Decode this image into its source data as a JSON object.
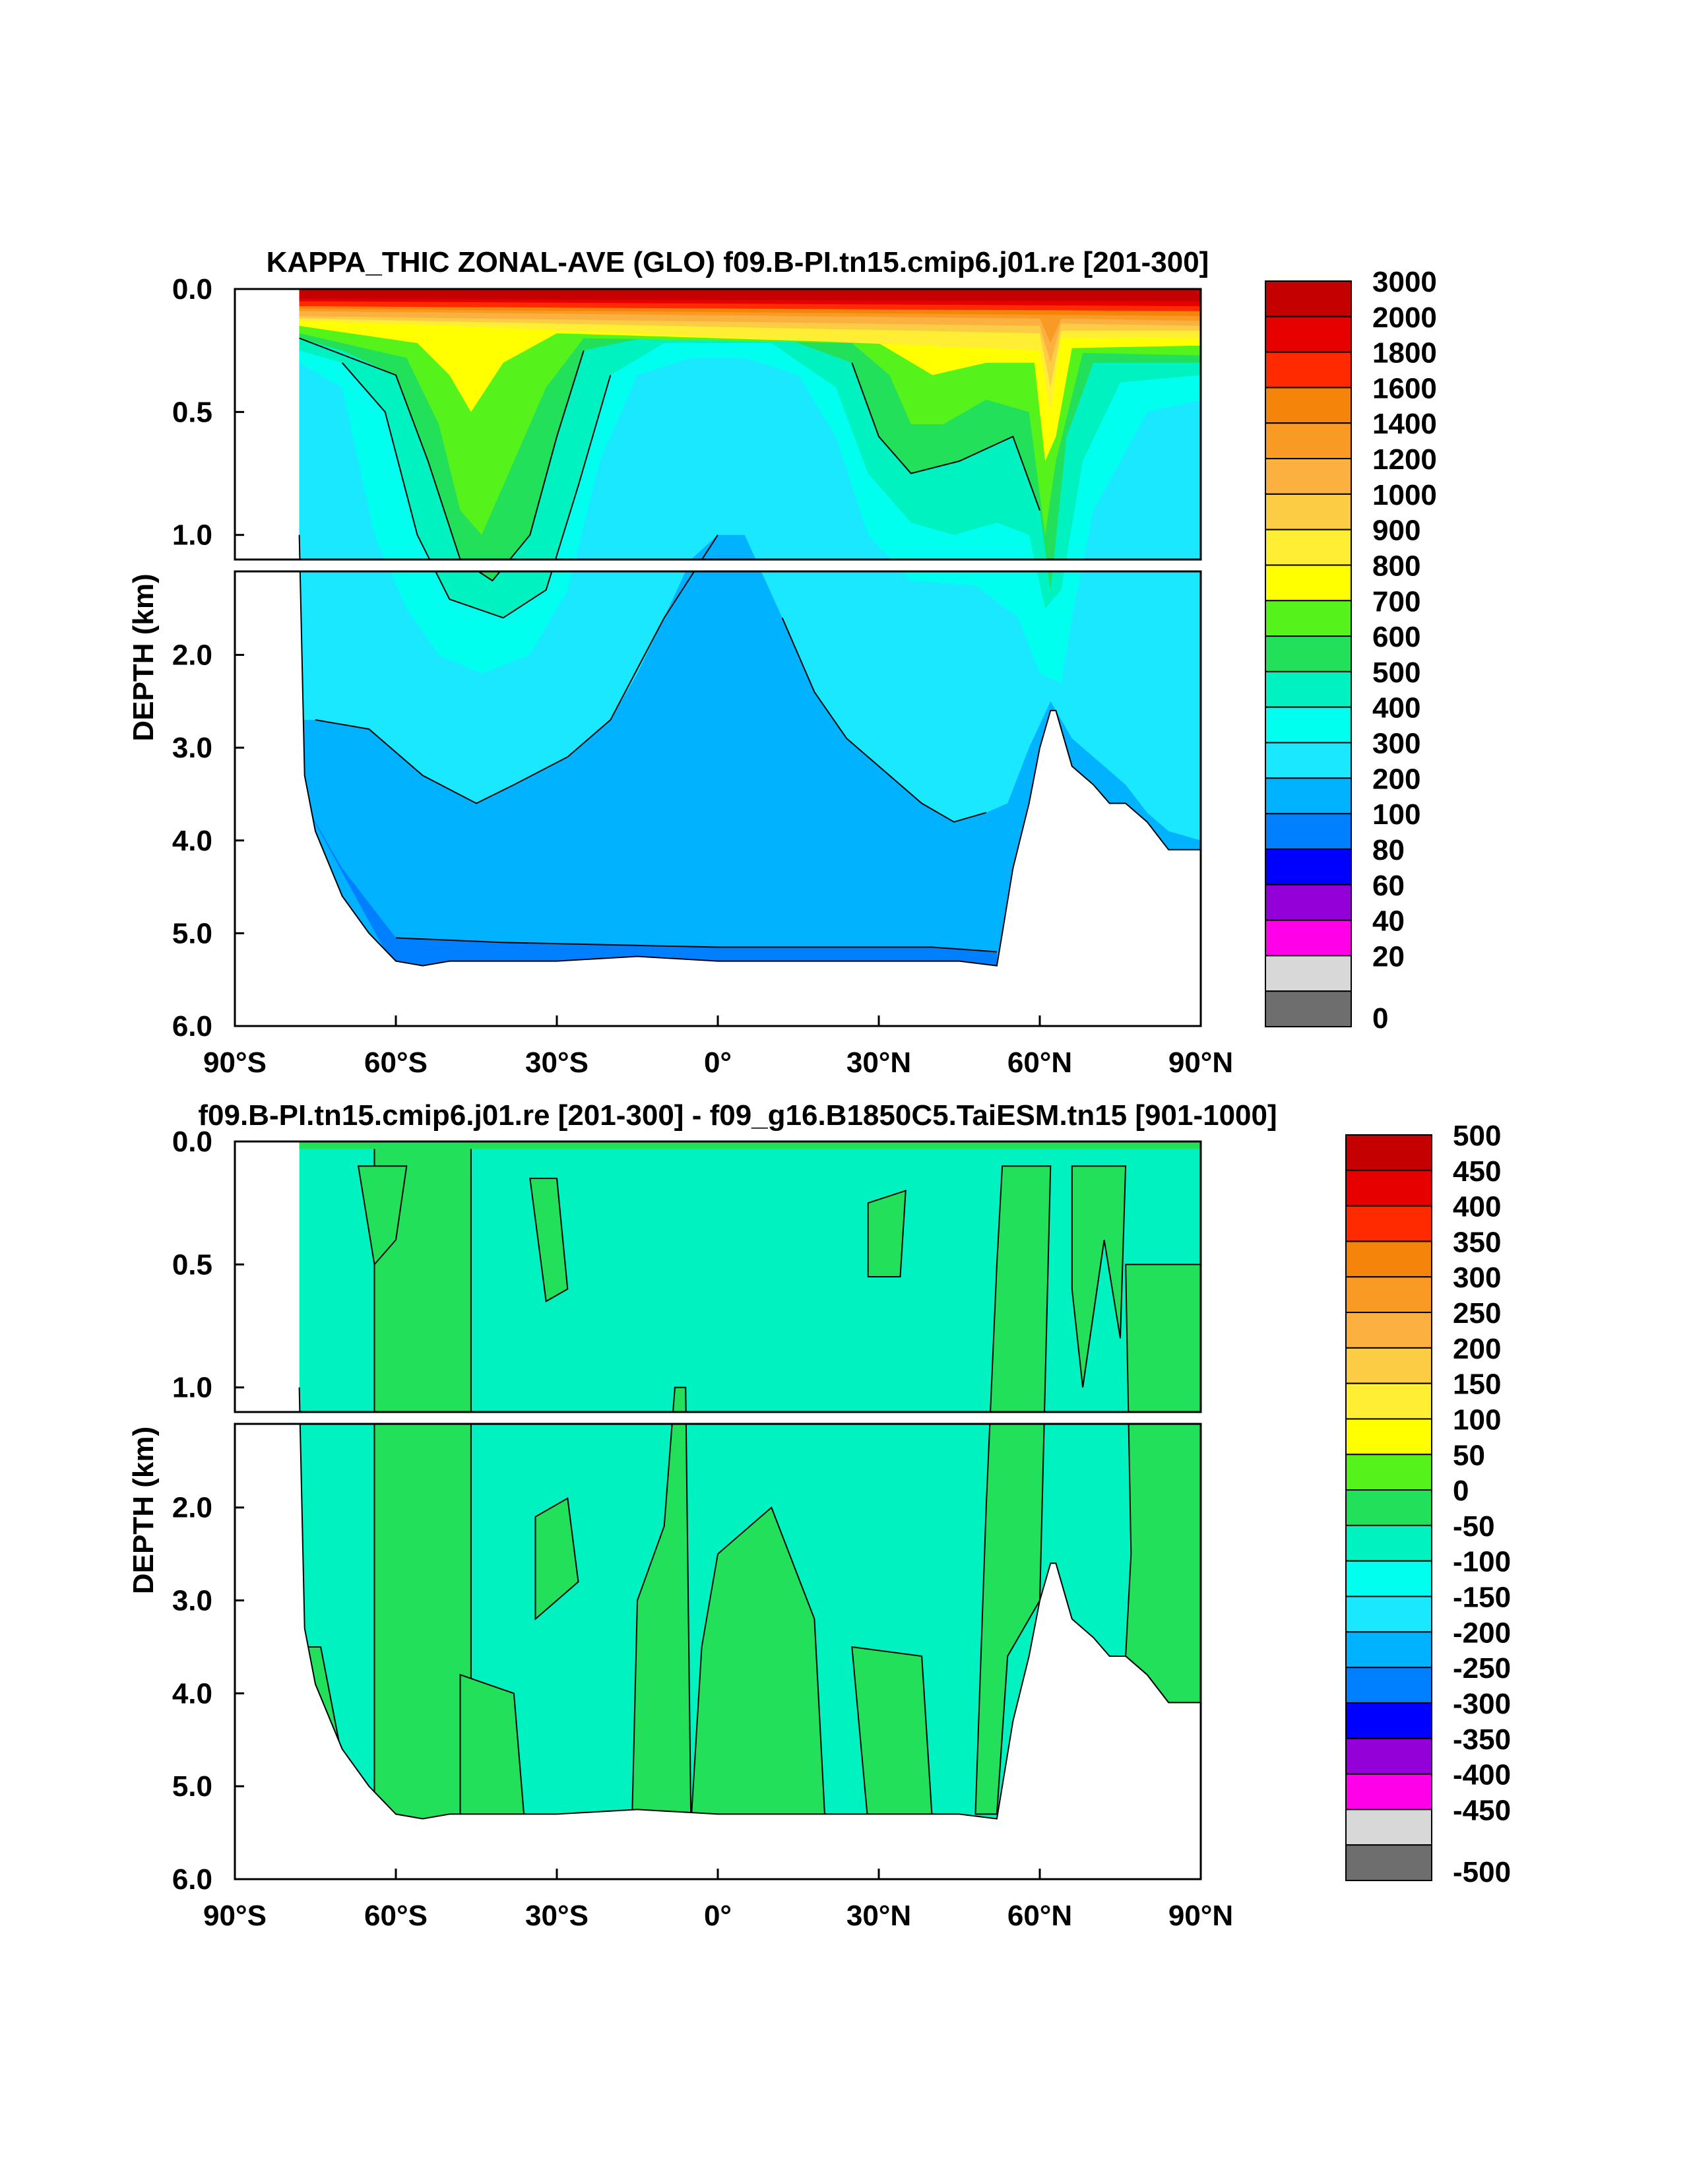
{
  "chart_data": [
    {
      "type": "heatmap",
      "title": "KAPPA_THIC ZONAL-AVE (GLO) f09.B-PI.tn15.cmip6.j01.re [201-300]",
      "ylabel": "DEPTH (km)",
      "xlabel": "",
      "xlim": [
        -90,
        90
      ],
      "ylim": [
        0,
        6
      ],
      "upper_panel_depth_range": [
        0,
        1.1
      ],
      "lower_panel_depth_range": [
        1.1,
        6
      ],
      "x_ticks": [
        {
          "value": -90,
          "label": "90°S"
        },
        {
          "value": -60,
          "label": "60°S"
        },
        {
          "value": -30,
          "label": "30°S"
        },
        {
          "value": 0,
          "label": "0°"
        },
        {
          "value": 30,
          "label": "30°N"
        },
        {
          "value": 60,
          "label": "60°N"
        },
        {
          "value": 90,
          "label": "90°N"
        }
      ],
      "y_ticks_upper": [
        {
          "value": 0,
          "label": "0.0"
        },
        {
          "value": 0.5,
          "label": "0.5"
        },
        {
          "value": 1,
          "label": "1.0"
        }
      ],
      "y_ticks_lower": [
        {
          "value": 2,
          "label": "2.0"
        },
        {
          "value": 3,
          "label": "3.0"
        },
        {
          "value": 4,
          "label": "4.0"
        },
        {
          "value": 5,
          "label": "5.0"
        },
        {
          "value": 6,
          "label": "6.0"
        }
      ],
      "colorbar": {
        "labels": [
          "3000",
          "2000",
          "1800",
          "1600",
          "1400",
          "1200",
          "1000",
          "900",
          "800",
          "700",
          "600",
          "500",
          "400",
          "300",
          "200",
          "100",
          "80",
          "60",
          "40",
          "20",
          "0"
        ],
        "colors": [
          "#c40000",
          "#e60000",
          "#ff2a00",
          "#f5850a",
          "#f99a25",
          "#fbb040",
          "#fccc44",
          "#ffee33",
          "#ffff00",
          "#55f21c",
          "#22e05a",
          "#00f2c0",
          "#00ffee",
          "#1ae8ff",
          "#00b2ff",
          "#0080ff",
          "#0000ff",
          "#9400d8",
          "#ff00e8",
          "#d8d8d8",
          "#6e6e6e"
        ]
      },
      "bottom_depth_km": [
        [
          -78,
          1.0
        ],
        [
          -77,
          3.3
        ],
        [
          -75,
          3.9
        ],
        [
          -70,
          4.6
        ],
        [
          -65,
          5.0
        ],
        [
          -60,
          5.3
        ],
        [
          -55,
          5.35
        ],
        [
          -50,
          5.3
        ],
        [
          -40,
          5.3
        ],
        [
          -30,
          5.3
        ],
        [
          -15,
          5.25
        ],
        [
          0,
          5.3
        ],
        [
          15,
          5.3
        ],
        [
          30,
          5.3
        ],
        [
          45,
          5.3
        ],
        [
          52,
          5.35
        ],
        [
          53,
          5.0
        ],
        [
          55,
          4.3
        ],
        [
          58,
          3.6
        ],
        [
          60,
          3.0
        ],
        [
          62,
          2.6
        ],
        [
          63,
          2.6
        ],
        [
          66,
          3.2
        ],
        [
          70,
          3.4
        ],
        [
          73,
          3.6
        ],
        [
          76,
          3.6
        ],
        [
          80,
          3.8
        ],
        [
          84,
          4.1
        ],
        [
          90,
          4.1
        ]
      ],
      "notes": [
        "Surface layer exceeds 2000 everywhere",
        "Minimum ~200 in deep ocean",
        "Maximum 700-800 near 45°S at ~0.3-1.5 km",
        "Strong gradient (up to 1400) near 62°N extending to ~2 km"
      ]
    },
    {
      "type": "heatmap",
      "title": "f09.B-PI.tn15.cmip6.j01.re [201-300] - f09_g16.B1850C5.TaiESM.tn15 [901-1000]",
      "ylabel": "DEPTH (km)",
      "xlabel": "",
      "xlim": [
        -90,
        90
      ],
      "ylim": [
        0,
        6
      ],
      "x_ticks": [
        {
          "value": -90,
          "label": "90°S"
        },
        {
          "value": -60,
          "label": "60°S"
        },
        {
          "value": -30,
          "label": "30°S"
        },
        {
          "value": 0,
          "label": "0°"
        },
        {
          "value": 30,
          "label": "30°N"
        },
        {
          "value": 60,
          "label": "60°N"
        },
        {
          "value": 90,
          "label": "90°N"
        }
      ],
      "y_ticks_upper": [
        {
          "value": 0,
          "label": "0.0"
        },
        {
          "value": 0.5,
          "label": "0.5"
        },
        {
          "value": 1,
          "label": "1.0"
        }
      ],
      "y_ticks_lower": [
        {
          "value": 2,
          "label": "2.0"
        },
        {
          "value": 3,
          "label": "3.0"
        },
        {
          "value": 4,
          "label": "4.0"
        },
        {
          "value": 5,
          "label": "5.0"
        },
        {
          "value": 6,
          "label": "6.0"
        }
      ],
      "colorbar": {
        "labels": [
          "500",
          "450",
          "400",
          "350",
          "300",
          "250",
          "200",
          "150",
          "100",
          "50",
          "0",
          "-50",
          "-100",
          "-150",
          "-200",
          "-250",
          "-300",
          "-350",
          "-400",
          "-450",
          "-500"
        ],
        "colors": [
          "#c40000",
          "#e60000",
          "#ff2a00",
          "#f5850a",
          "#f99a25",
          "#fbb040",
          "#fccc44",
          "#ffee33",
          "#ffff00",
          "#55f21c",
          "#22e05a",
          "#00f2c0",
          "#00ffee",
          "#1ae8ff",
          "#00b2ff",
          "#0080ff",
          "#0000ff",
          "#9400d8",
          "#ff00e8",
          "#d8d8d8",
          "#6e6e6e"
        ]
      },
      "notes": [
        "Mostly -50 to 0 (difference)",
        "Positive 0 to 50 band near 60°S-47°S full depth",
        "Positive 0 to 50 near 52°N-90°N",
        "Positive 0 to 50 patches in deep tropics"
      ]
    }
  ]
}
